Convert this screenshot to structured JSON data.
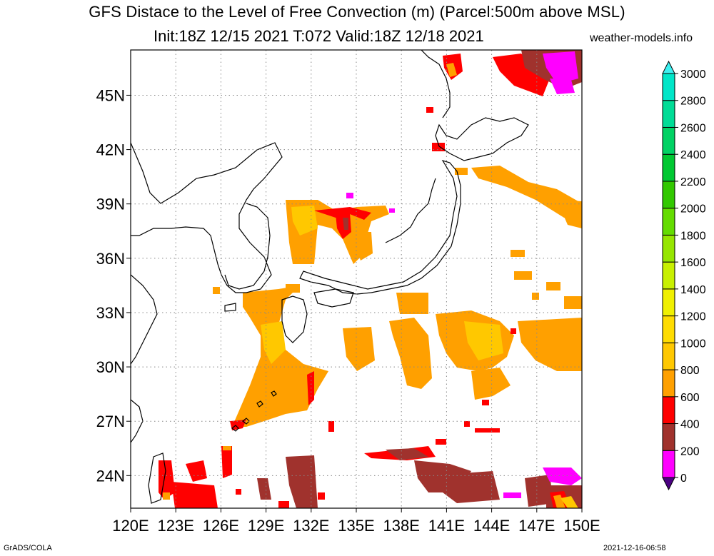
{
  "title": {
    "line1": "GFS Distace to the Level of Free Convection (m) (Parcel:500m above MSL)",
    "line2": "Init:18Z 12/15 2021 T:072 Valid:18Z 12/18 2021"
  },
  "brand": "weather-models.info",
  "footer": {
    "left": "GrADS/COLA",
    "right": "2021-12-16-06:58"
  },
  "map": {
    "lon_range": [
      120,
      150
    ],
    "lat_range": [
      22.2,
      47.5
    ],
    "lon_ticks": [
      "120E",
      "123E",
      "126E",
      "129E",
      "132E",
      "135E",
      "138E",
      "141E",
      "144E",
      "147E",
      "150E"
    ],
    "lat_ticks": [
      "24N",
      "27N",
      "30N",
      "33N",
      "36N",
      "39N",
      "42N",
      "45N"
    ],
    "grid": true
  },
  "colorbar": {
    "labels": [
      "0",
      "200",
      "400",
      "600",
      "800",
      "1000",
      "1200",
      "1400",
      "1600",
      "1800",
      "2000",
      "2200",
      "2400",
      "2600",
      "2800",
      "3000"
    ],
    "colors": [
      "#ff00ff",
      "#a0322d",
      "#ff0000",
      "#ffa000",
      "#ffc800",
      "#ffdc00",
      "#f0f000",
      "#c8f000",
      "#96e600",
      "#64dc00",
      "#32c800",
      "#00c832",
      "#00d264",
      "#00dc96",
      "#00e6c8"
    ],
    "low_cap_color": "#4b0082",
    "high_cap_color": "#3cf0f0"
  }
}
